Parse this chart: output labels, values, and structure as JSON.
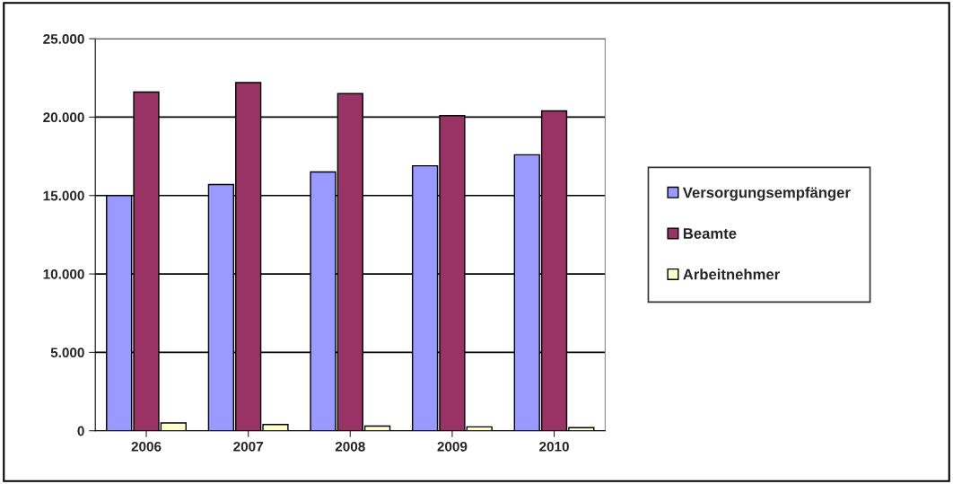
{
  "chart_data": {
    "type": "bar",
    "categories": [
      "2006",
      "2007",
      "2008",
      "2009",
      "2010"
    ],
    "series": [
      {
        "name": "Versorgungsempfänger",
        "color": "#9999ff",
        "values": [
          15000,
          15700,
          16500,
          16900,
          17600
        ]
      },
      {
        "name": "Beamte",
        "color": "#993366",
        "values": [
          21600,
          22200,
          21500,
          20100,
          20400
        ]
      },
      {
        "name": "Arbeitnehmer",
        "color": "#ffffcc",
        "values": [
          500,
          400,
          300,
          250,
          200
        ]
      }
    ],
    "ylim": [
      0,
      25000
    ],
    "yticks": [
      {
        "value": 0,
        "label": "0"
      },
      {
        "value": 5000,
        "label": "5.000"
      },
      {
        "value": 10000,
        "label": "10.000"
      },
      {
        "value": 15000,
        "label": "15.000"
      },
      {
        "value": 20000,
        "label": "20.000"
      },
      {
        "value": 25000,
        "label": "25.000"
      }
    ],
    "grid": "y",
    "legend": "right"
  }
}
